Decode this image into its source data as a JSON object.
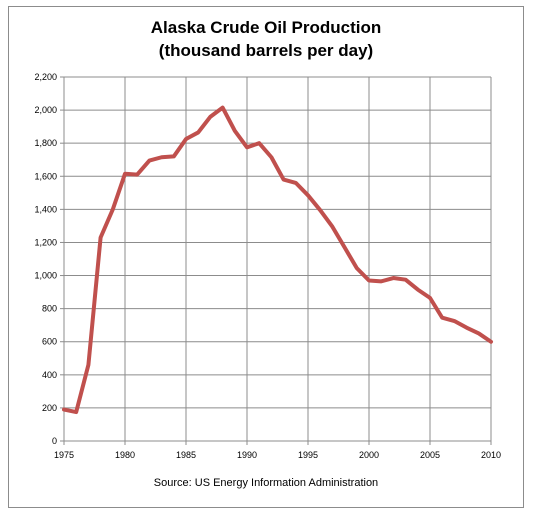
{
  "chart_data": {
    "type": "line",
    "title": "Alaska Crude Oil Production",
    "subtitle": "(thousand barrels per day)",
    "source": "Source: US Energy Information Administration",
    "xlim": [
      1975,
      2010
    ],
    "ylim": [
      0,
      2200
    ],
    "x_ticks": [
      "1975",
      "1980",
      "1985",
      "1990",
      "1995",
      "2000",
      "2005",
      "2010"
    ],
    "y_ticks": [
      "0",
      "200",
      "400",
      "600",
      "800",
      "1,000",
      "1,200",
      "1,400",
      "1,600",
      "1,800",
      "2,000",
      "2,200"
    ],
    "grid": true,
    "legend": "none",
    "series": [
      {
        "color": "#c0504d",
        "x": [
          1975,
          1976,
          1977,
          1978,
          1979,
          1980,
          1981,
          1982,
          1983,
          1984,
          1985,
          1986,
          1987,
          1988,
          1989,
          1990,
          1991,
          1992,
          1993,
          1994,
          1995,
          1996,
          1997,
          1998,
          1999,
          2000,
          2001,
          2002,
          2003,
          2004,
          2005,
          2006,
          2007,
          2008,
          2009,
          2010
        ],
        "values": [
          190,
          175,
          460,
          1230,
          1400,
          1615,
          1610,
          1695,
          1715,
          1720,
          1825,
          1865,
          1960,
          2015,
          1875,
          1775,
          1800,
          1715,
          1580,
          1560,
          1485,
          1395,
          1295,
          1170,
          1045,
          970,
          965,
          985,
          975,
          915,
          865,
          745,
          725,
          685,
          650,
          600
        ]
      }
    ]
  }
}
